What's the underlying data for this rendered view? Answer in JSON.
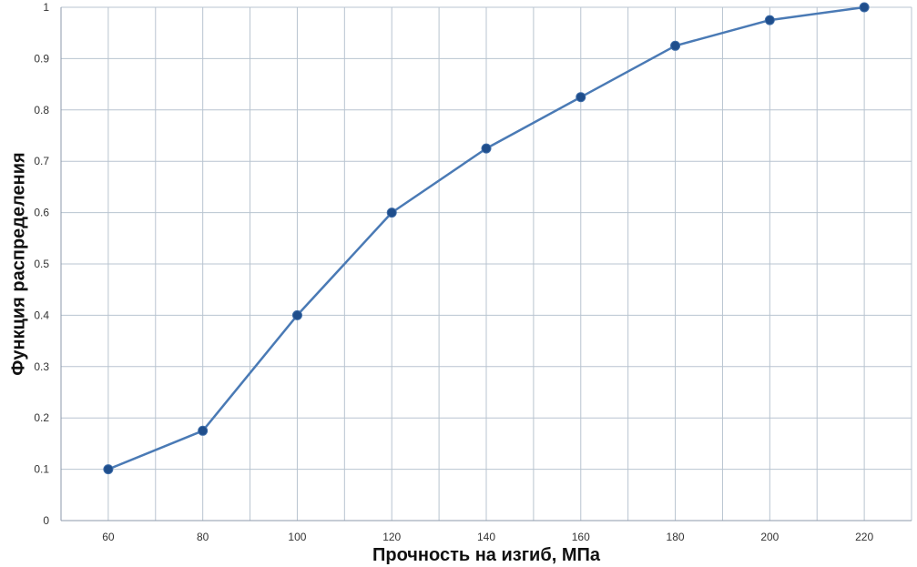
{
  "chart_data": {
    "type": "line",
    "title": "",
    "xlabel": "Прочность на изгиб, МПа",
    "ylabel": "Функция распределения",
    "x": [
      60,
      80,
      100,
      120,
      140,
      160,
      180,
      200,
      220
    ],
    "series": [
      {
        "values": [
          0.1,
          0.175,
          0.4,
          0.6,
          0.725,
          0.825,
          0.925,
          0.975,
          1.0
        ]
      }
    ],
    "xlim": [
      50,
      230
    ],
    "ylim": [
      0,
      1
    ],
    "x_major_ticks": [
      60,
      80,
      100,
      120,
      140,
      160,
      180,
      200,
      220
    ],
    "x_tick_labels": [
      "60",
      "80",
      "100",
      "120",
      "140",
      "160",
      "180",
      "200",
      "220"
    ],
    "y_major_ticks": [
      0,
      0.1,
      0.2,
      0.3,
      0.4,
      0.5,
      0.6,
      0.7,
      0.8,
      0.9,
      1
    ],
    "y_tick_labels": [
      "0",
      "0.1",
      "0.2",
      "0.3",
      "0.4",
      "0.5",
      "0.6",
      "0.7",
      "0.8",
      "0.9",
      "1"
    ],
    "grid": true,
    "legend": "none",
    "colors": {
      "line": "#4a7ab5",
      "marker": "#1f4e8c",
      "grid": "#b8c4d0",
      "axis": "#8c9aab"
    }
  }
}
